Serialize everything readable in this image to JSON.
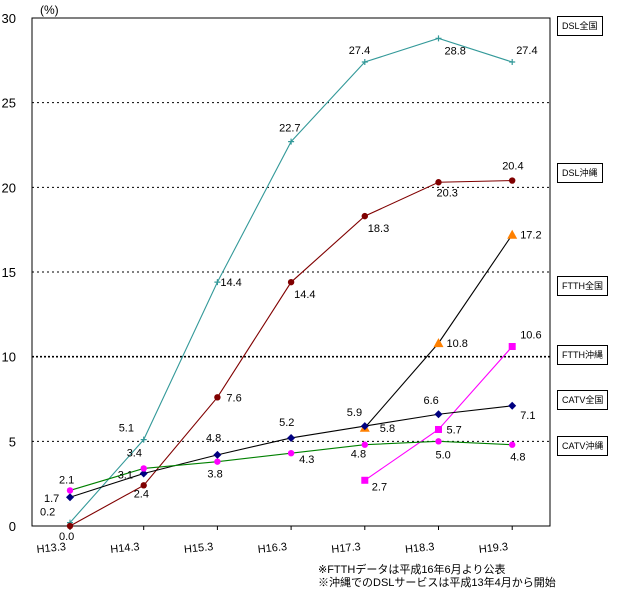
{
  "chart_data": {
    "type": "line",
    "unit_label": "(%)",
    "categories": [
      "H13.3",
      "H14.3",
      "H15.3",
      "H16.3",
      "H17.3",
      "H18.3",
      "H19.3"
    ],
    "ylim": [
      0,
      30
    ],
    "yticks": [
      0,
      5,
      10,
      15,
      20,
      25,
      30
    ],
    "grid": "dotted horizontal",
    "series": [
      {
        "name": "DSL全国",
        "color": "#339999",
        "marker": "plus",
        "values": [
          0.2,
          5.1,
          14.4,
          22.7,
          27.4,
          28.8,
          27.4
        ],
        "labels": [
          "0.2",
          "5.1",
          "14.4",
          "22.7",
          "27.4",
          "28.8",
          "27.4"
        ]
      },
      {
        "name": "DSL沖縄",
        "color": "#800000",
        "marker": "circle",
        "values": [
          0.0,
          2.4,
          7.6,
          14.4,
          18.3,
          20.3,
          20.4
        ],
        "labels": [
          "0.0",
          "2.4",
          "7.6",
          "14.4",
          "18.3",
          "20.3",
          "20.4"
        ]
      },
      {
        "name": "FTTH全国",
        "color": "#000000",
        "marker_color": "#ff8000",
        "marker": "triangle",
        "values": [
          null,
          null,
          null,
          null,
          5.8,
          10.8,
          17.2
        ],
        "labels": [
          null,
          null,
          null,
          null,
          "5.8",
          "10.8",
          "17.2"
        ]
      },
      {
        "name": "FTTH沖縄",
        "color": "#ff00ff",
        "marker": "square",
        "values": [
          null,
          null,
          null,
          null,
          2.7,
          5.7,
          10.6
        ],
        "labels": [
          null,
          null,
          null,
          null,
          "2.7",
          "5.7",
          "10.6"
        ]
      },
      {
        "name": "CATV全国",
        "color": "#000000",
        "marker_color": "#000080",
        "marker": "diamond",
        "values": [
          1.7,
          3.1,
          4.2,
          5.2,
          5.9,
          6.6,
          7.1
        ],
        "labels": [
          "1.7",
          "3.1",
          null,
          "5.2",
          "5.9",
          "6.6",
          "7.1"
        ]
      },
      {
        "name": "CATV沖縄",
        "color": "#008000",
        "marker_color": "#ff00ff",
        "marker": "circle",
        "values": [
          2.1,
          3.4,
          3.8,
          4.3,
          4.8,
          5.0,
          4.8
        ],
        "labels": [
          "2.1",
          "3.4",
          "3.8",
          "4.3",
          "4.8",
          "5.0",
          "4.8"
        ]
      }
    ],
    "extra_labels": [
      "4.8"
    ],
    "notes": [
      "※FTTHデータは平成16年6月より公表",
      "※沖縄でのDSLサービスは平成13年4月から開始"
    ]
  }
}
